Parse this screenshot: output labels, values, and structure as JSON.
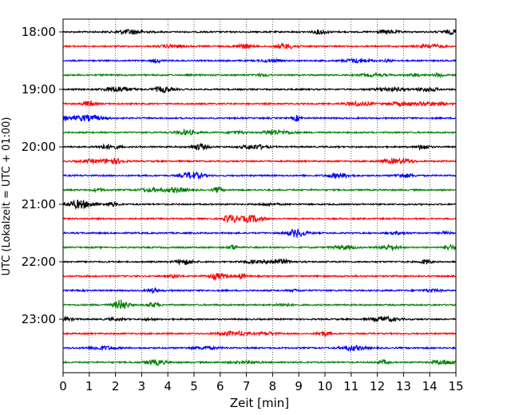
{
  "chart_data": {
    "type": "line",
    "title": "",
    "xlabel": "Zeit  [min]",
    "ylabel": "UTC (Lokalzeit = UTC + 01:00)",
    "xlim": [
      0,
      15
    ],
    "x_ticks": [
      "0",
      "1",
      "2",
      "3",
      "4",
      "5",
      "6",
      "7",
      "8",
      "9",
      "10",
      "11",
      "12",
      "13",
      "14",
      "15"
    ],
    "y_tick_labels": [
      "18:00",
      "19:00",
      "20:00",
      "21:00",
      "22:00",
      "23:00"
    ],
    "grid": "vertical-dotted",
    "trace_colors": [
      "#000000",
      "#ff0000",
      "#0000ff",
      "#008000"
    ],
    "traces": [
      {
        "start": "18:00",
        "color": "#000000"
      },
      {
        "start": "18:15",
        "color": "#ff0000"
      },
      {
        "start": "18:30",
        "color": "#0000ff"
      },
      {
        "start": "18:45",
        "color": "#008000"
      },
      {
        "start": "19:00",
        "color": "#000000"
      },
      {
        "start": "19:15",
        "color": "#ff0000"
      },
      {
        "start": "19:30",
        "color": "#0000ff"
      },
      {
        "start": "19:45",
        "color": "#008000"
      },
      {
        "start": "20:00",
        "color": "#000000"
      },
      {
        "start": "20:15",
        "color": "#ff0000"
      },
      {
        "start": "20:30",
        "color": "#0000ff"
      },
      {
        "start": "20:45",
        "color": "#008000"
      },
      {
        "start": "21:00",
        "color": "#000000"
      },
      {
        "start": "21:15",
        "color": "#ff0000"
      },
      {
        "start": "21:30",
        "color": "#0000ff"
      },
      {
        "start": "21:45",
        "color": "#008000"
      },
      {
        "start": "22:00",
        "color": "#000000"
      },
      {
        "start": "22:15",
        "color": "#ff0000"
      },
      {
        "start": "22:30",
        "color": "#0000ff"
      },
      {
        "start": "22:45",
        "color": "#008000"
      },
      {
        "start": "23:00",
        "color": "#000000"
      },
      {
        "start": "23:15",
        "color": "#ff0000"
      },
      {
        "start": "23:30",
        "color": "#0000ff"
      },
      {
        "start": "23:45",
        "color": "#008000"
      }
    ]
  }
}
